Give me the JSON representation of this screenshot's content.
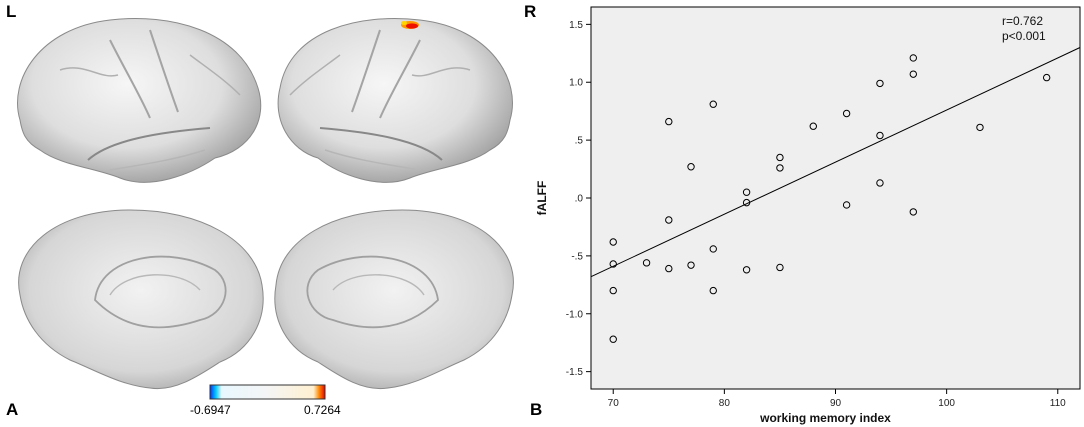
{
  "panels": {
    "left_hemisphere": "L",
    "right_hemisphere": "R",
    "panel_a": "A",
    "panel_b": "B"
  },
  "colorbar": {
    "min_label": "-0.6947",
    "max_label": "0.7264",
    "min_color": "#1e90ff",
    "max_color": "#ff3000"
  },
  "chart_data": {
    "type": "scatter",
    "xlabel": "working memory index",
    "ylabel": "fALFF",
    "xlim": [
      68,
      112
    ],
    "ylim": [
      -1.65,
      1.65
    ],
    "x_ticks": [
      70,
      80,
      90,
      100,
      110
    ],
    "y_ticks": [
      -1.5,
      -1.0,
      -0.5,
      0.0,
      0.5,
      1.0,
      1.5
    ],
    "y_tick_labels": [
      "-1.5",
      "-1.0",
      "-.5",
      ".0",
      ".5",
      "1.0",
      "1.5"
    ],
    "x_tick_labels": [
      "70",
      "80",
      "90",
      "100",
      "110"
    ],
    "annotations": [
      "r=0.762",
      "p<0.001"
    ],
    "points": [
      {
        "x": 70,
        "y": -0.38
      },
      {
        "x": 70,
        "y": -0.57
      },
      {
        "x": 70,
        "y": -0.8
      },
      {
        "x": 70,
        "y": -1.22
      },
      {
        "x": 73,
        "y": -0.56
      },
      {
        "x": 75,
        "y": 0.66
      },
      {
        "x": 75,
        "y": -0.19
      },
      {
        "x": 75,
        "y": -0.61
      },
      {
        "x": 77,
        "y": 0.27
      },
      {
        "x": 77,
        "y": -0.58
      },
      {
        "x": 79,
        "y": 0.81
      },
      {
        "x": 79,
        "y": -0.44
      },
      {
        "x": 79,
        "y": -0.8
      },
      {
        "x": 82,
        "y": 0.05
      },
      {
        "x": 82,
        "y": -0.04
      },
      {
        "x": 82,
        "y": -0.62
      },
      {
        "x": 85,
        "y": 0.35
      },
      {
        "x": 85,
        "y": 0.26
      },
      {
        "x": 85,
        "y": -0.6
      },
      {
        "x": 88,
        "y": 0.62
      },
      {
        "x": 91,
        "y": 0.73
      },
      {
        "x": 91,
        "y": -0.06
      },
      {
        "x": 94,
        "y": 0.99
      },
      {
        "x": 94,
        "y": 0.54
      },
      {
        "x": 94,
        "y": 0.13
      },
      {
        "x": 97,
        "y": 1.21
      },
      {
        "x": 97,
        "y": 1.07
      },
      {
        "x": 97,
        "y": -0.12
      },
      {
        "x": 103,
        "y": 0.61
      },
      {
        "x": 109,
        "y": 1.04
      }
    ],
    "fit_line": {
      "x": [
        68,
        112
      ],
      "y": [
        -0.68,
        1.3
      ]
    },
    "grid": false,
    "background": "#efefef"
  }
}
